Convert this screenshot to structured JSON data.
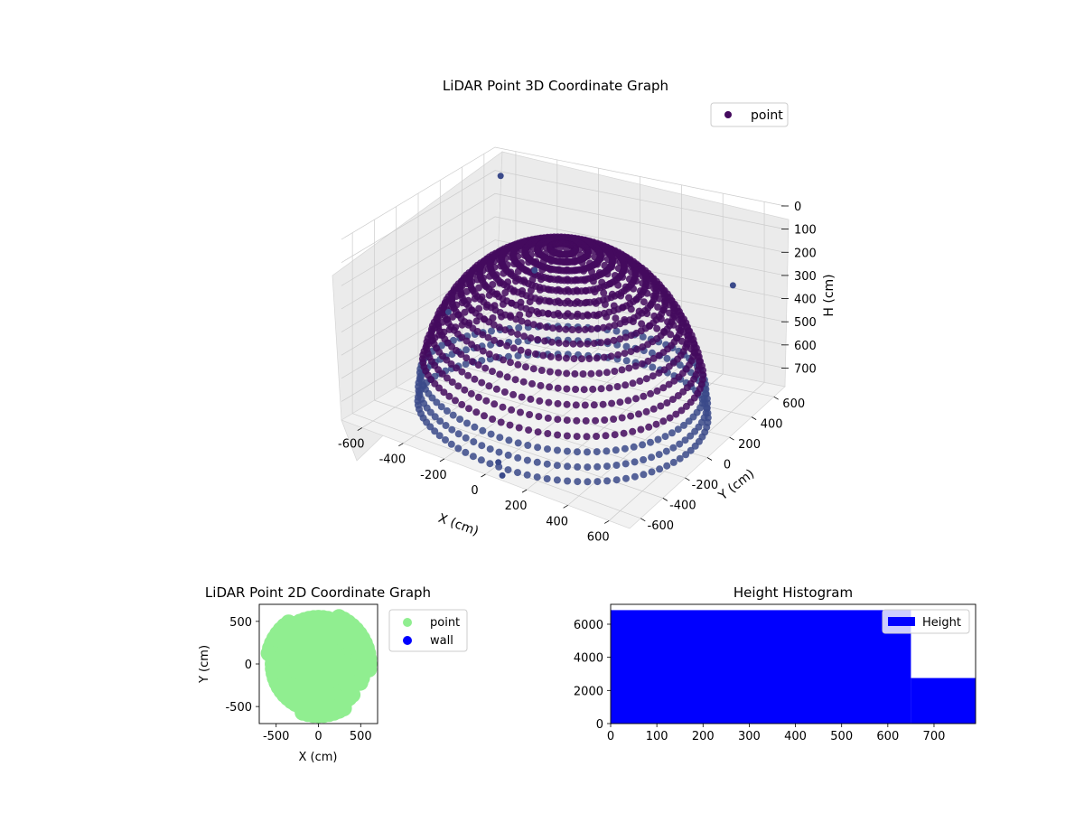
{
  "colors": {
    "point_3d": "#440a5e",
    "point_3d_light": "#3b4a8a",
    "point_2d": "#90ee90",
    "wall": "#0000ff",
    "hist": "#0000ff",
    "pane": "#f2f2f2",
    "grid": "#cccccc"
  },
  "chart_data": [
    {
      "type": "scatter",
      "title": "LiDAR Point 3D Coordinate Graph",
      "xlabel": "X (cm)",
      "ylabel": "Y (cm)",
      "zlabel": "H (cm)",
      "xlim": [
        -700,
        700
      ],
      "ylim": [
        -700,
        700
      ],
      "zlim": [
        0,
        780
      ],
      "z_inverted": true,
      "x_ticks": [
        "-600",
        "-400",
        "-200",
        "0",
        "200",
        "400",
        "600"
      ],
      "y_ticks": [
        "-600",
        "-400",
        "-200",
        "0",
        "200",
        "400",
        "600"
      ],
      "z_ticks": [
        "0",
        "100",
        "200",
        "300",
        "400",
        "500",
        "600",
        "700"
      ],
      "legend": [
        "point"
      ],
      "legend_position": "top-right",
      "grid": true,
      "description_of_shape": "hemispherical dome of LiDAR points",
      "stray_points": [
        {
          "x": -620,
          "y": 600,
          "h": 80
        },
        {
          "x": -660,
          "y": 200,
          "h": 560
        },
        {
          "x": 30,
          "y": -640,
          "h": 740
        },
        {
          "x": 60,
          "y": -660,
          "h": 780
        },
        {
          "x": 620,
          "y": 380,
          "h": 220
        },
        {
          "x": -360,
          "y": 420,
          "h": 380
        }
      ]
    },
    {
      "type": "scatter",
      "title": "LiDAR Point 2D Coordinate Graph",
      "xlabel": "X (cm)",
      "ylabel": "Y (cm)",
      "xlim": [
        -700,
        700
      ],
      "ylim": [
        -700,
        700
      ],
      "x_ticks": [
        "-500",
        "0",
        "500"
      ],
      "y_ticks": [
        "-500",
        "0",
        "500"
      ],
      "series": [
        {
          "name": "point",
          "color": "#90ee90"
        },
        {
          "name": "wall",
          "color": "#0000ff"
        }
      ],
      "legend_position": "outside-right",
      "grid": false
    },
    {
      "type": "bar",
      "title": "Height Histogram",
      "xlabel": "",
      "ylabel": "",
      "xlim": [
        0,
        790
      ],
      "ylim": [
        0,
        7200
      ],
      "x_ticks": [
        "0",
        "100",
        "200",
        "300",
        "400",
        "500",
        "600",
        "700"
      ],
      "y_ticks": [
        "0",
        "2000",
        "4000",
        "6000"
      ],
      "bins": [
        {
          "x0": 0,
          "x1": 650,
          "count": 6850
        },
        {
          "x0": 650,
          "x1": 790,
          "count": 2750
        }
      ],
      "legend": [
        "Height"
      ],
      "legend_position": "top-right",
      "grid": false
    }
  ]
}
